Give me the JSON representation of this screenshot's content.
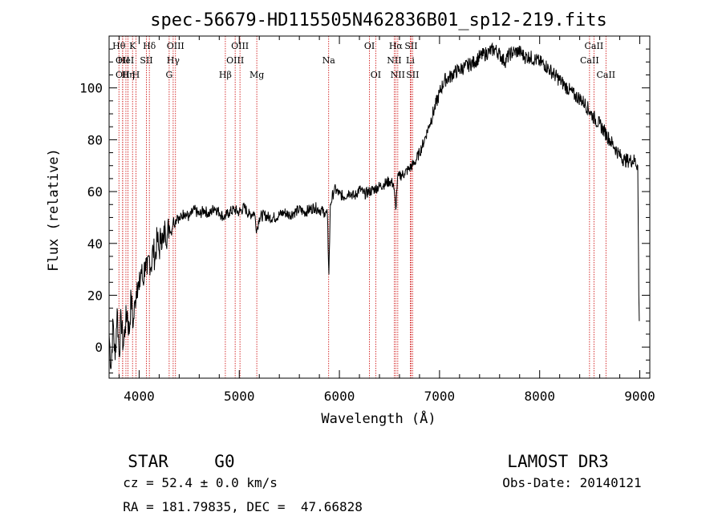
{
  "chart_data": {
    "type": "line",
    "title": "spec-56679-HD115505N462836B01_sp12-219.fits",
    "xlabel": "Wavelength (Å)",
    "ylabel": "Flux (relative)",
    "xlim": [
      3700,
      9100
    ],
    "ylim": [
      -12,
      120
    ],
    "x_ticks": [
      4000,
      5000,
      6000,
      7000,
      8000,
      9000
    ],
    "y_ticks": [
      0,
      20,
      40,
      60,
      80,
      100
    ],
    "grid": false,
    "series": [
      {
        "color": "#000000",
        "points": [
          [
            3700,
            5
          ],
          [
            3720,
            -8
          ],
          [
            3740,
            10
          ],
          [
            3760,
            -5
          ],
          [
            3780,
            15
          ],
          [
            3800,
            -3
          ],
          [
            3820,
            12
          ],
          [
            3840,
            0
          ],
          [
            3860,
            8
          ],
          [
            3880,
            14
          ],
          [
            3900,
            5
          ],
          [
            3920,
            20
          ],
          [
            3940,
            8
          ],
          [
            3960,
            18
          ],
          [
            3980,
            25
          ],
          [
            4000,
            22
          ],
          [
            4020,
            30
          ],
          [
            4040,
            25
          ],
          [
            4060,
            33
          ],
          [
            4080,
            28
          ],
          [
            4100,
            35
          ],
          [
            4120,
            31
          ],
          [
            4140,
            38
          ],
          [
            4160,
            34
          ],
          [
            4180,
            42
          ],
          [
            4200,
            37
          ],
          [
            4220,
            44
          ],
          [
            4240,
            40
          ],
          [
            4260,
            46
          ],
          [
            4280,
            43
          ],
          [
            4300,
            47
          ],
          [
            4320,
            44
          ],
          [
            4340,
            49
          ],
          [
            4360,
            48
          ],
          [
            4380,
            51
          ],
          [
            4400,
            49
          ],
          [
            4450,
            52
          ],
          [
            4500,
            50
          ],
          [
            4550,
            53
          ],
          [
            4600,
            51
          ],
          [
            4650,
            53
          ],
          [
            4700,
            51
          ],
          [
            4750,
            54
          ],
          [
            4800,
            52
          ],
          [
            4850,
            50
          ],
          [
            4900,
            52
          ],
          [
            4950,
            53
          ],
          [
            5000,
            52
          ],
          [
            5050,
            54
          ],
          [
            5100,
            51
          ],
          [
            5150,
            52
          ],
          [
            5175,
            45
          ],
          [
            5200,
            50
          ],
          [
            5250,
            51
          ],
          [
            5300,
            50
          ],
          [
            5350,
            50
          ],
          [
            5400,
            51
          ],
          [
            5450,
            52
          ],
          [
            5500,
            51
          ],
          [
            5550,
            52
          ],
          [
            5600,
            53
          ],
          [
            5650,
            52
          ],
          [
            5700,
            53
          ],
          [
            5750,
            54
          ],
          [
            5800,
            53
          ],
          [
            5850,
            52
          ],
          [
            5880,
            51
          ],
          [
            5895,
            28
          ],
          [
            5910,
            55
          ],
          [
            5950,
            61
          ],
          [
            6000,
            59
          ],
          [
            6050,
            58
          ],
          [
            6100,
            60
          ],
          [
            6150,
            58
          ],
          [
            6200,
            61
          ],
          [
            6250,
            59
          ],
          [
            6300,
            60
          ],
          [
            6350,
            61
          ],
          [
            6400,
            62
          ],
          [
            6450,
            63
          ],
          [
            6500,
            64
          ],
          [
            6540,
            63
          ],
          [
            6563,
            53
          ],
          [
            6580,
            65
          ],
          [
            6600,
            66
          ],
          [
            6650,
            67
          ],
          [
            6700,
            69
          ],
          [
            6750,
            71
          ],
          [
            6800,
            75
          ],
          [
            6850,
            80
          ],
          [
            6900,
            86
          ],
          [
            6950,
            92
          ],
          [
            7000,
            98
          ],
          [
            7050,
            103
          ],
          [
            7100,
            104
          ],
          [
            7150,
            106
          ],
          [
            7200,
            107
          ],
          [
            7250,
            108
          ],
          [
            7300,
            109
          ],
          [
            7350,
            110
          ],
          [
            7400,
            112
          ],
          [
            7450,
            113
          ],
          [
            7500,
            114
          ],
          [
            7550,
            115
          ],
          [
            7600,
            113
          ],
          [
            7650,
            110
          ],
          [
            7700,
            113
          ],
          [
            7750,
            114
          ],
          [
            7800,
            114
          ],
          [
            7850,
            112
          ],
          [
            7900,
            112
          ],
          [
            7950,
            111
          ],
          [
            8000,
            110
          ],
          [
            8050,
            109
          ],
          [
            8100,
            107
          ],
          [
            8150,
            105
          ],
          [
            8200,
            103
          ],
          [
            8250,
            101
          ],
          [
            8300,
            99
          ],
          [
            8350,
            97
          ],
          [
            8400,
            96
          ],
          [
            8450,
            94
          ],
          [
            8500,
            91
          ],
          [
            8550,
            88
          ],
          [
            8600,
            86
          ],
          [
            8650,
            83
          ],
          [
            8700,
            80
          ],
          [
            8750,
            77
          ],
          [
            8800,
            74
          ],
          [
            8850,
            72
          ],
          [
            8900,
            72
          ],
          [
            8950,
            72
          ],
          [
            8980,
            70
          ],
          [
            8990,
            20
          ],
          [
            8995,
            10
          ]
        ]
      }
    ],
    "lines": [
      {
        "x": 3798,
        "label": "Hθ",
        "row": 0
      },
      {
        "x": 3835,
        "label": "OII",
        "row": 1
      },
      {
        "x": 3835,
        "label": "OII",
        "row": 2
      },
      {
        "x": 3868,
        "label": "HeI",
        "row": 1
      },
      {
        "x": 3889,
        "label": "Hη",
        "row": 2
      },
      {
        "x": 3934,
        "label": "K",
        "row": 0
      },
      {
        "x": 3968,
        "label": "H",
        "row": 2
      },
      {
        "x": 4072,
        "label": "SII",
        "row": 1
      },
      {
        "x": 4102,
        "label": "Hδ",
        "row": 0
      },
      {
        "x": 4300,
        "label": "G",
        "row": 2
      },
      {
        "x": 4340,
        "label": "Hγ",
        "row": 1
      },
      {
        "x": 4363,
        "label": "OIII",
        "row": 0
      },
      {
        "x": 4861,
        "label": "Hβ",
        "row": 2
      },
      {
        "x": 4959,
        "label": "OIII",
        "row": 1
      },
      {
        "x": 5007,
        "label": "OIII",
        "row": 0
      },
      {
        "x": 5175,
        "label": "Mg",
        "row": 2
      },
      {
        "x": 5893,
        "label": "Na",
        "row": 1
      },
      {
        "x": 6300,
        "label": "OI",
        "row": 0
      },
      {
        "x": 6363,
        "label": "OI",
        "row": 2
      },
      {
        "x": 6548,
        "label": "NII",
        "row": 1
      },
      {
        "x": 6563,
        "label": "Hα",
        "row": 0
      },
      {
        "x": 6583,
        "label": "NII",
        "row": 2
      },
      {
        "x": 6708,
        "label": "Li",
        "row": 1
      },
      {
        "x": 6716,
        "label": "SII",
        "row": 0
      },
      {
        "x": 6731,
        "label": "SII",
        "row": 2
      },
      {
        "x": 8498,
        "label": "CaII",
        "row": 1
      },
      {
        "x": 8542,
        "label": "CaII",
        "row": 0
      },
      {
        "x": 8662,
        "label": "CaII",
        "row": 2
      }
    ]
  },
  "info": {
    "class": "STAR",
    "subclass": "G0",
    "survey": "LAMOST DR3",
    "cz": "cz = 52.4 ± 0.0 km/s",
    "obs_date": "Obs-Date: 20140121",
    "coords": "RA = 181.79835, DEC =  47.66828"
  },
  "colors": {
    "spectrum": "#000000",
    "line_markers": "#cc0000",
    "axes": "#000000"
  }
}
